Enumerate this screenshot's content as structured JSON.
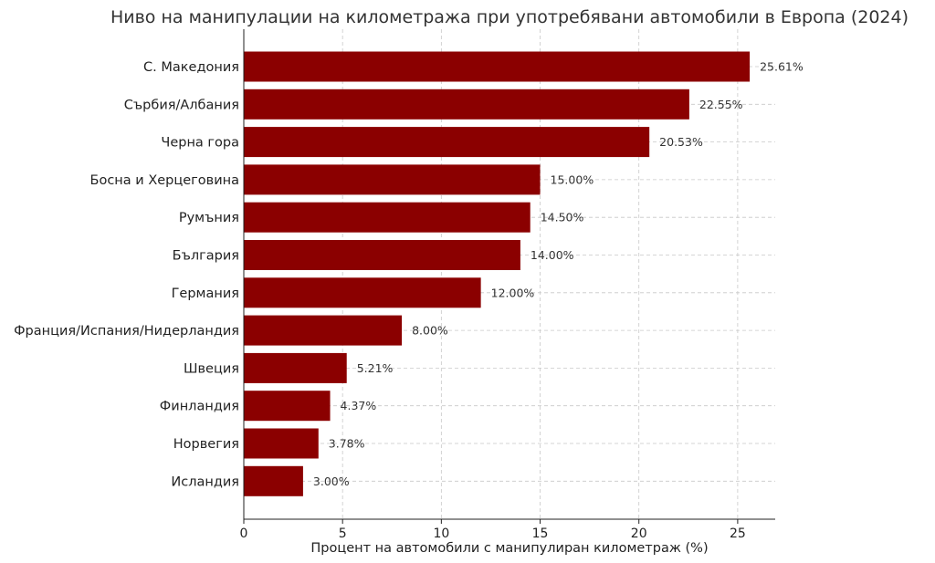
{
  "chart_data": {
    "type": "bar",
    "orientation": "horizontal",
    "title": "Ниво на манипулации на километража при употребявани автомобили в Европа (2024)",
    "xlabel": "Процент на автомобили с манипулиран километраж (%)",
    "ylabel": "",
    "categories": [
      "С. Македония",
      "Сърбия/Албания",
      "Черна гора",
      "Босна и Херцеговина",
      "Румъния",
      "България",
      "Германия",
      "Франция/Испания/Нидерландия",
      "Швеция",
      "Финландия",
      "Норвегия",
      "Исландия"
    ],
    "values": [
      25.61,
      22.55,
      20.53,
      15.0,
      14.5,
      14.0,
      12.0,
      8.0,
      5.21,
      4.37,
      3.78,
      3.0
    ],
    "value_labels": [
      "25.61%",
      "22.55%",
      "20.53%",
      "15.00%",
      "14.50%",
      "14.00%",
      "12.00%",
      "8.00%",
      "5.21%",
      "4.37%",
      "3.78%",
      "3.00%"
    ],
    "xlim": [
      0,
      26.9
    ],
    "xticks": [
      0,
      5,
      10,
      15,
      20,
      25
    ],
    "xtick_labels": [
      "0",
      "5",
      "10",
      "15",
      "20",
      "25"
    ],
    "grid": true,
    "bar_color": "#8b0000"
  }
}
